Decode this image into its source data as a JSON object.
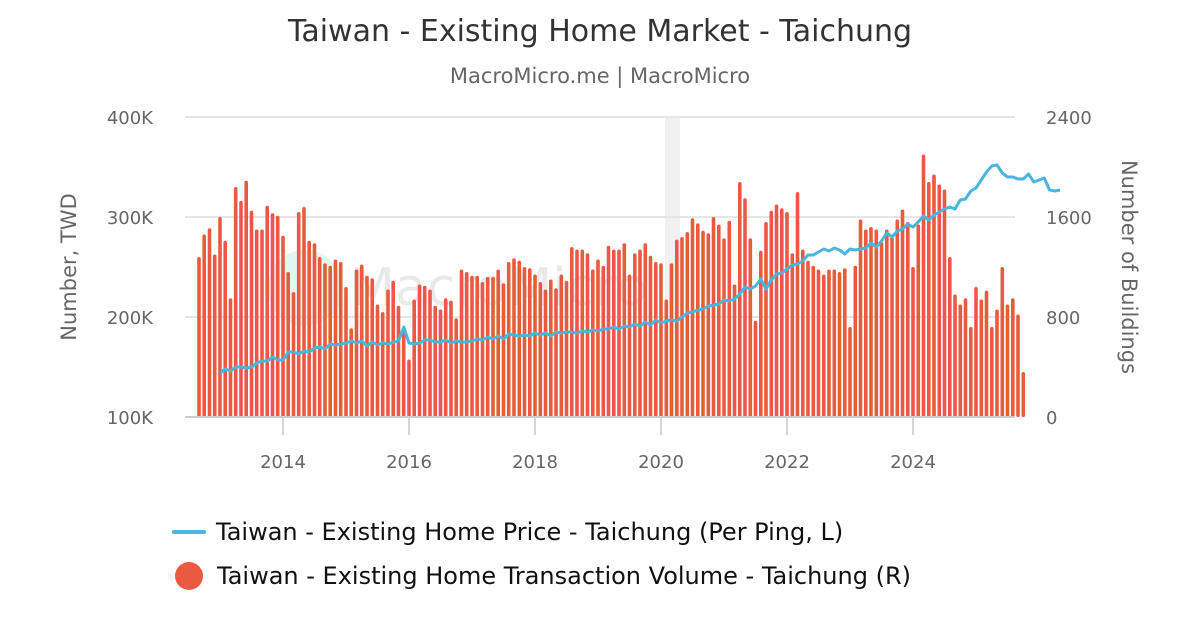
{
  "header": {
    "title": "Taiwan - Existing Home Market - Taichung",
    "subtitle": "MacroMicro.me | MacroMicro"
  },
  "watermark": "MacroMicro",
  "colors": {
    "price_line": "#4AB5DD",
    "volume_bars": "#EB5A40",
    "grid": "#E6E6E6",
    "axis_text": "#666666"
  },
  "legend": {
    "items": [
      {
        "label": "Taiwan - Existing Home Price - Taichung (Per Ping, L)",
        "marker": "line"
      },
      {
        "label": "Taiwan - Existing Home Transaction Volume - Taichung (R)",
        "marker": "circle"
      }
    ]
  },
  "axes": {
    "left": {
      "title": "Number, TWD",
      "ticks": [
        "100K",
        "200K",
        "300K",
        "400K"
      ]
    },
    "right": {
      "title": "Number of Buildings",
      "ticks": [
        "0",
        "800",
        "1600",
        "2400"
      ]
    },
    "x": {
      "ticks": [
        "2014",
        "2016",
        "2018",
        "2020",
        "2022",
        "2024"
      ]
    }
  },
  "chart_data": {
    "type": "bar+line",
    "title": "Taiwan - Existing Home Market - Taichung",
    "subtitle": "MacroMicro.me | MacroMicro",
    "xlabel": "",
    "ylabel_left": "Number, TWD",
    "ylabel_right": "Number of Buildings",
    "ylim_left": [
      100000,
      400000
    ],
    "ylim_right": [
      0,
      2400
    ],
    "grid": true,
    "legend_position": "bottom",
    "x_start": "2012-09",
    "x_end": "2025-07",
    "frequency": "monthly",
    "series": [
      {
        "name": "Taiwan - Existing Home Transaction Volume - Taichung (R)",
        "type": "bar",
        "axis": "right",
        "start": "2012-09",
        "values": [
          1280,
          1460,
          1510,
          1300,
          1600,
          1410,
          950,
          1840,
          1730,
          1890,
          1650,
          1500,
          1500,
          1690,
          1630,
          1610,
          1450,
          1160,
          1000,
          1640,
          1680,
          1410,
          1390,
          1280,
          1230,
          1210,
          1260,
          1240,
          1040,
          710,
          1180,
          1220,
          1130,
          1110,
          900,
          840,
          1020,
          1090,
          890,
          710,
          460,
          940,
          1060,
          1050,
          1020,
          890,
          860,
          950,
          930,
          790,
          1180,
          1160,
          1130,
          1130,
          1080,
          1120,
          1120,
          1180,
          1070,
          1240,
          1270,
          1250,
          1200,
          1190,
          1140,
          1080,
          1020,
          1100,
          1030,
          1140,
          1090,
          1360,
          1340,
          1340,
          1310,
          1180,
          1260,
          1210,
          1370,
          1340,
          1340,
          1390,
          1140,
          1310,
          1340,
          1390,
          1290,
          1240,
          1230,
          940,
          1230,
          1420,
          1440,
          1480,
          1590,
          1550,
          1490,
          1470,
          1600,
          1540,
          1430,
          1570,
          1060,
          1880,
          1750,
          1430,
          770,
          1330,
          1560,
          1650,
          1700,
          1670,
          1640,
          1310,
          1800,
          1340,
          1250,
          1210,
          1180,
          1140,
          1180,
          1180,
          1160,
          1190,
          720,
          1210,
          1580,
          1500,
          1520,
          1500,
          1400,
          1500,
          1440,
          1580,
          1660,
          1560,
          1200,
          1540,
          2100,
          1880,
          1940,
          1860,
          1820,
          1280,
          980,
          900,
          950,
          720,
          1040,
          940,
          1010,
          720,
          860,
          1200,
          900,
          950,
          820,
          360
        ]
      },
      {
        "name": "Taiwan - Existing Home Price - Taichung (Per Ping, L)",
        "type": "line",
        "axis": "left",
        "start": "2013-01",
        "values": [
          144000,
          148000,
          146000,
          150000,
          150000,
          149000,
          150000,
          154000,
          156000,
          156000,
          160000,
          157000,
          157000,
          165000,
          165000,
          163000,
          166000,
          165000,
          169000,
          170000,
          168000,
          173000,
          172000,
          173000,
          174000,
          176000,
          174000,
          176000,
          171000,
          175000,
          172000,
          174000,
          173000,
          175000,
          176000,
          190000,
          174000,
          173000,
          174000,
          177000,
          177000,
          175000,
          175000,
          177000,
          174000,
          176000,
          175000,
          175000,
          176000,
          178000,
          177000,
          180000,
          178000,
          181000,
          178000,
          183000,
          182000,
          181000,
          182000,
          181000,
          184000,
          182000,
          184000,
          181000,
          185000,
          184000,
          185000,
          185000,
          184000,
          186000,
          185000,
          187000,
          186000,
          188000,
          188000,
          190000,
          188000,
          191000,
          190000,
          193000,
          191000,
          195000,
          192000,
          197000,
          194000,
          196000,
          197000,
          196000,
          200000,
          204000,
          205000,
          207000,
          208000,
          211000,
          212000,
          213000,
          217000,
          216000,
          218000,
          223000,
          230000,
          228000,
          231000,
          238000,
          228000,
          237000,
          243000,
          244000,
          248000,
          252000,
          253000,
          256000,
          262000,
          262000,
          265000,
          268000,
          266000,
          269000,
          267000,
          263000,
          268000,
          267000,
          268000,
          269000,
          274000,
          270000,
          276000,
          284000,
          280000,
          286000,
          288000,
          293000,
          290000,
          295000,
          301000,
          297000,
          302000,
          305000,
          308000,
          310000,
          308000,
          317000,
          318000,
          326000,
          329000,
          337000,
          345000,
          351000,
          352000,
          344000,
          340000,
          340000,
          338000,
          338000,
          343000,
          335000,
          337000,
          339000,
          327000,
          326000,
          327000
        ]
      }
    ]
  }
}
